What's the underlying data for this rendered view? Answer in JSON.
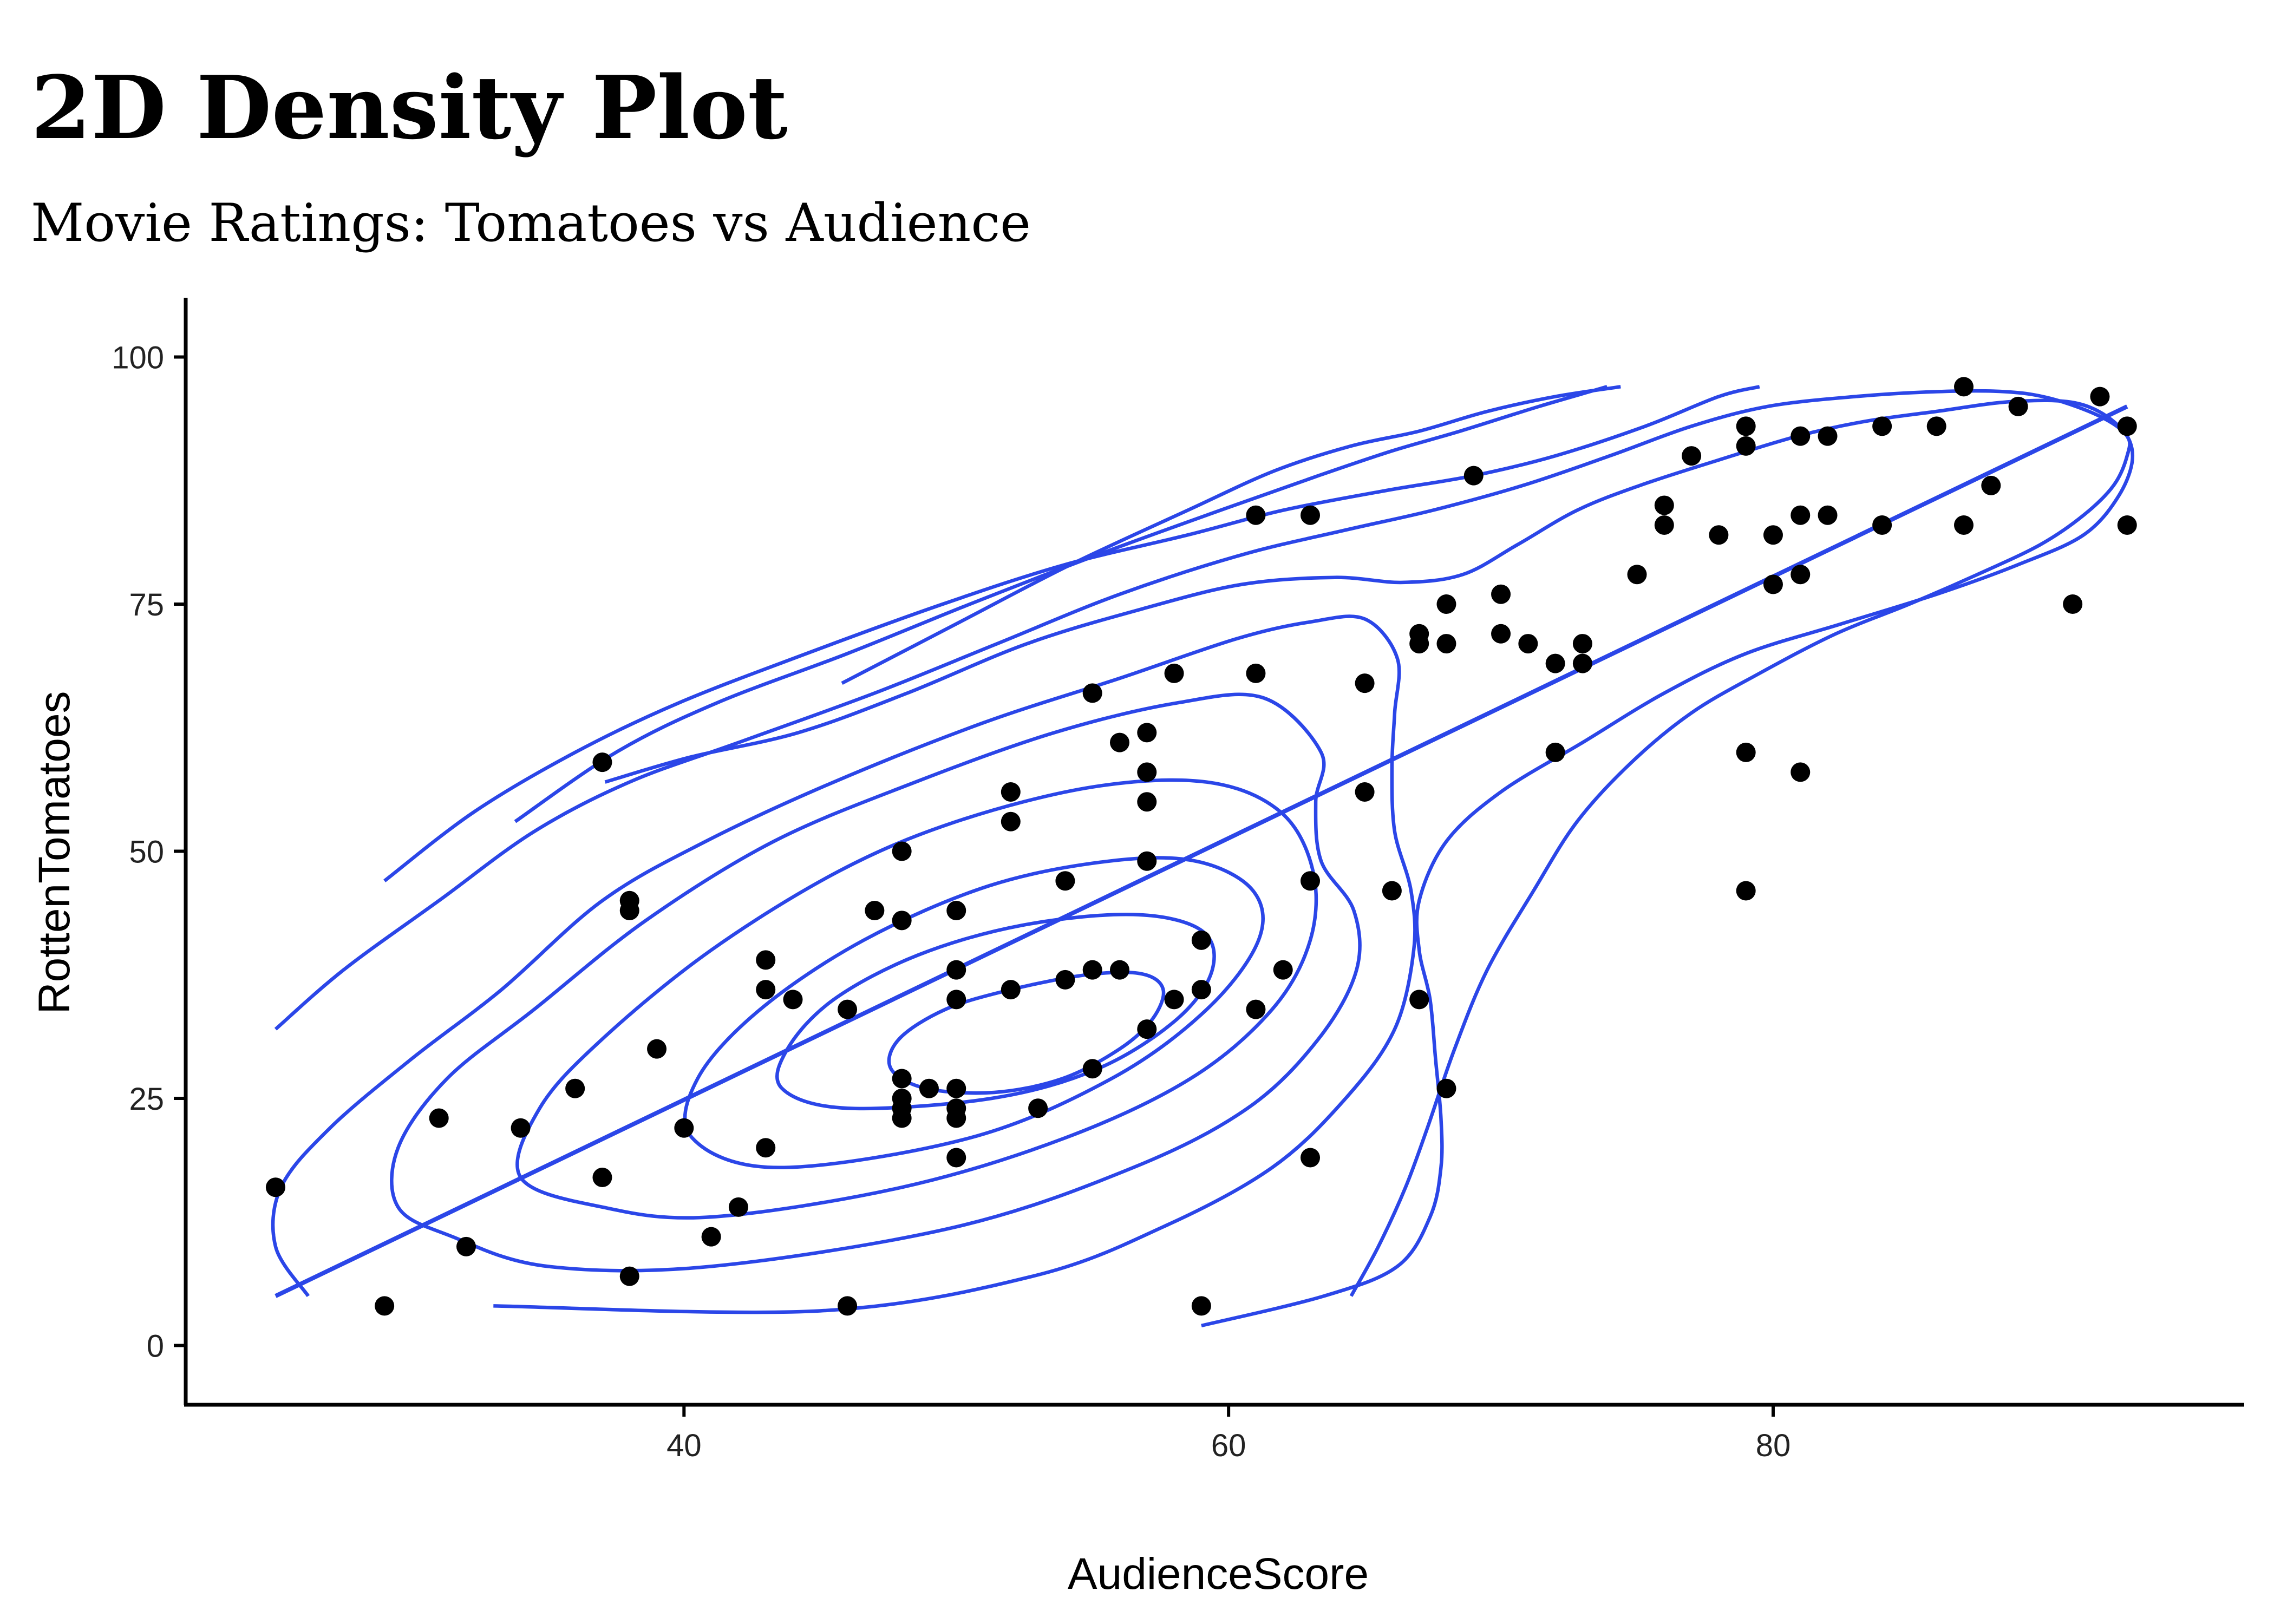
{
  "chart_data": {
    "type": "scatter",
    "title": "2D Density Plot",
    "subtitle": "Movie Ratings: Tomatoes vs Audience",
    "xlabel": "AudienceScore",
    "ylabel": "RottenTomatoes",
    "xlim": [
      21.7,
      97.3
    ],
    "ylim": [
      -6,
      106
    ],
    "xticks": [
      "40",
      "60",
      "80"
    ],
    "yticks": [
      "0",
      "25",
      "50",
      "75",
      "100"
    ],
    "grid": false,
    "legend": "none",
    "colors": {
      "points": "#000000",
      "contours": "#2B46E8",
      "regression": "#2B46E8"
    },
    "points": [
      {
        "x": 25,
        "y": 16
      },
      {
        "x": 29,
        "y": 4
      },
      {
        "x": 31,
        "y": 23
      },
      {
        "x": 32,
        "y": 10
      },
      {
        "x": 34,
        "y": 22
      },
      {
        "x": 36,
        "y": 26
      },
      {
        "x": 37,
        "y": 17
      },
      {
        "x": 37,
        "y": 59
      },
      {
        "x": 38,
        "y": 45
      },
      {
        "x": 38,
        "y": 44
      },
      {
        "x": 38,
        "y": 7
      },
      {
        "x": 39,
        "y": 30
      },
      {
        "x": 40,
        "y": 22
      },
      {
        "x": 41,
        "y": 11
      },
      {
        "x": 42,
        "y": 14
      },
      {
        "x": 43,
        "y": 39
      },
      {
        "x": 43,
        "y": 36
      },
      {
        "x": 43,
        "y": 20
      },
      {
        "x": 44,
        "y": 35
      },
      {
        "x": 46,
        "y": 34
      },
      {
        "x": 46,
        "y": 4
      },
      {
        "x": 47,
        "y": 44
      },
      {
        "x": 48,
        "y": 50
      },
      {
        "x": 48,
        "y": 43
      },
      {
        "x": 48,
        "y": 27
      },
      {
        "x": 48,
        "y": 25
      },
      {
        "x": 48,
        "y": 24
      },
      {
        "x": 48,
        "y": 23
      },
      {
        "x": 49,
        "y": 26
      },
      {
        "x": 50,
        "y": 44
      },
      {
        "x": 50,
        "y": 38
      },
      {
        "x": 50,
        "y": 35
      },
      {
        "x": 50,
        "y": 26
      },
      {
        "x": 50,
        "y": 24
      },
      {
        "x": 50,
        "y": 23
      },
      {
        "x": 50,
        "y": 19
      },
      {
        "x": 52,
        "y": 56
      },
      {
        "x": 52,
        "y": 53
      },
      {
        "x": 52,
        "y": 36
      },
      {
        "x": 53,
        "y": 24
      },
      {
        "x": 54,
        "y": 47
      },
      {
        "x": 54,
        "y": 37
      },
      {
        "x": 55,
        "y": 66
      },
      {
        "x": 55,
        "y": 38
      },
      {
        "x": 55,
        "y": 28
      },
      {
        "x": 56,
        "y": 61
      },
      {
        "x": 56,
        "y": 38
      },
      {
        "x": 57,
        "y": 62
      },
      {
        "x": 57,
        "y": 58
      },
      {
        "x": 57,
        "y": 55
      },
      {
        "x": 57,
        "y": 49
      },
      {
        "x": 57,
        "y": 32
      },
      {
        "x": 58,
        "y": 68
      },
      {
        "x": 58,
        "y": 35
      },
      {
        "x": 59,
        "y": 41
      },
      {
        "x": 59,
        "y": 36
      },
      {
        "x": 59,
        "y": 4
      },
      {
        "x": 61,
        "y": 84
      },
      {
        "x": 61,
        "y": 68
      },
      {
        "x": 61,
        "y": 34
      },
      {
        "x": 62,
        "y": 38
      },
      {
        "x": 63,
        "y": 84
      },
      {
        "x": 63,
        "y": 47
      },
      {
        "x": 63,
        "y": 19
      },
      {
        "x": 65,
        "y": 67
      },
      {
        "x": 65,
        "y": 56
      },
      {
        "x": 66,
        "y": 46
      },
      {
        "x": 67,
        "y": 72
      },
      {
        "x": 67,
        "y": 71
      },
      {
        "x": 67,
        "y": 35
      },
      {
        "x": 68,
        "y": 75
      },
      {
        "x": 68,
        "y": 71
      },
      {
        "x": 68,
        "y": 26
      },
      {
        "x": 69,
        "y": 88
      },
      {
        "x": 70,
        "y": 76
      },
      {
        "x": 70,
        "y": 72
      },
      {
        "x": 71,
        "y": 71
      },
      {
        "x": 72,
        "y": 69
      },
      {
        "x": 72,
        "y": 60
      },
      {
        "x": 73,
        "y": 71
      },
      {
        "x": 73,
        "y": 69
      },
      {
        "x": 75,
        "y": 78
      },
      {
        "x": 76,
        "y": 85
      },
      {
        "x": 76,
        "y": 83
      },
      {
        "x": 77,
        "y": 90
      },
      {
        "x": 78,
        "y": 82
      },
      {
        "x": 79,
        "y": 93
      },
      {
        "x": 79,
        "y": 91
      },
      {
        "x": 79,
        "y": 60
      },
      {
        "x": 79,
        "y": 46
      },
      {
        "x": 80,
        "y": 82
      },
      {
        "x": 80,
        "y": 77
      },
      {
        "x": 81,
        "y": 92
      },
      {
        "x": 81,
        "y": 84
      },
      {
        "x": 81,
        "y": 78
      },
      {
        "x": 81,
        "y": 58
      },
      {
        "x": 82,
        "y": 92
      },
      {
        "x": 82,
        "y": 84
      },
      {
        "x": 84,
        "y": 93
      },
      {
        "x": 84,
        "y": 83
      },
      {
        "x": 86,
        "y": 93
      },
      {
        "x": 87,
        "y": 97
      },
      {
        "x": 87,
        "y": 83
      },
      {
        "x": 88,
        "y": 87
      },
      {
        "x": 89,
        "y": 95
      },
      {
        "x": 91,
        "y": 75
      },
      {
        "x": 92,
        "y": 96
      },
      {
        "x": 93,
        "y": 93
      },
      {
        "x": 93,
        "y": 83
      }
    ],
    "regression": [
      {
        "x": 25,
        "y": 5
      },
      {
        "x": 93,
        "y": 95
      }
    ],
    "contours": [
      [
        [
          48.9,
          26
        ],
        [
          47.6,
          28
        ],
        [
          47.9,
          31
        ],
        [
          49.6,
          34
        ],
        [
          52.0,
          36
        ],
        [
          54.8,
          37.5
        ],
        [
          56.8,
          37.6
        ],
        [
          57.6,
          36
        ],
        [
          57.2,
          33
        ],
        [
          56.0,
          30
        ],
        [
          53.9,
          27
        ],
        [
          51.4,
          25.6
        ],
        [
          48.9,
          26
        ]
      ],
      [
        [
          46.0,
          24
        ],
        [
          43.6,
          26
        ],
        [
          43.8,
          30
        ],
        [
          45.5,
          35
        ],
        [
          48.6,
          39.5
        ],
        [
          52.4,
          42.5
        ],
        [
          56.5,
          43.6
        ],
        [
          59.0,
          42
        ],
        [
          59.4,
          38
        ],
        [
          58.1,
          33
        ],
        [
          55.2,
          28
        ],
        [
          51.3,
          25
        ],
        [
          46.0,
          24
        ]
      ],
      [
        [
          43.5,
          18
        ],
        [
          40.3,
          21
        ],
        [
          40.5,
          27
        ],
        [
          42.8,
          34
        ],
        [
          46.6,
          41
        ],
        [
          51.2,
          46.5
        ],
        [
          55.6,
          49
        ],
        [
          58.8,
          49
        ],
        [
          60.9,
          46
        ],
        [
          61.1,
          41
        ],
        [
          59.2,
          34
        ],
        [
          55.7,
          27
        ],
        [
          50.5,
          21
        ],
        [
          43.5,
          18
        ]
      ],
      [
        [
          37.0,
          14
        ],
        [
          34.0,
          17
        ],
        [
          34.7,
          24
        ],
        [
          37.0,
          31
        ],
        [
          41.0,
          40
        ],
        [
          45.7,
          48
        ],
        [
          50.0,
          53
        ],
        [
          55.0,
          56.5
        ],
        [
          59.2,
          57
        ],
        [
          61.9,
          54
        ],
        [
          63.1,
          48
        ],
        [
          63.0,
          41
        ],
        [
          61.6,
          34
        ],
        [
          58.6,
          27
        ],
        [
          54.0,
          21
        ],
        [
          48.0,
          16
        ],
        [
          41.0,
          13
        ],
        [
          37.0,
          14
        ]
      ],
      [
        [
          31.5,
          11
        ],
        [
          29.5,
          14
        ],
        [
          29.5,
          20
        ],
        [
          31.3,
          27
        ],
        [
          34.5,
          34
        ],
        [
          38.6,
          43
        ],
        [
          43.3,
          51
        ],
        [
          48.5,
          57
        ],
        [
          53.6,
          62
        ],
        [
          58.1,
          65
        ],
        [
          61.3,
          65.5
        ],
        [
          63.4,
          60
        ],
        [
          63.2,
          55
        ],
        [
          63.4,
          49
        ],
        [
          64.6,
          44
        ],
        [
          64.7,
          38
        ],
        [
          63.3,
          31
        ],
        [
          60.7,
          24
        ],
        [
          56.5,
          18
        ],
        [
          50.0,
          12
        ],
        [
          41.0,
          8
        ],
        [
          35.0,
          8
        ],
        [
          31.5,
          11
        ]
      ],
      [
        [
          26.2,
          5
        ],
        [
          25.0,
          10
        ],
        [
          25.2,
          16
        ],
        [
          27.0,
          22
        ],
        [
          30.0,
          29
        ],
        [
          33.3,
          36
        ],
        [
          37.0,
          45
        ],
        [
          40.8,
          51
        ],
        [
          45.5,
          57
        ],
        [
          51.0,
          63
        ],
        [
          56.0,
          67.5
        ],
        [
          60.3,
          71.5
        ],
        [
          63.0,
          73.2
        ],
        [
          65.0,
          73.5
        ],
        [
          66.2,
          69.5
        ],
        [
          66.1,
          64
        ],
        [
          66.0,
          58.5
        ],
        [
          66.1,
          52
        ],
        [
          66.7,
          46
        ],
        [
          66.8,
          40
        ],
        [
          66.1,
          32
        ],
        [
          64.3,
          25
        ],
        [
          61.6,
          18
        ],
        [
          57.6,
          12
        ],
        [
          52.8,
          7
        ],
        [
          45.0,
          3.5
        ],
        [
          33.0,
          4
        ]
      ],
      [
        [
          37.1,
          57
        ],
        [
          40.2,
          59.5
        ],
        [
          44.2,
          62
        ],
        [
          48.2,
          66
        ],
        [
          52.6,
          71
        ],
        [
          56.8,
          74.5
        ],
        [
          60.5,
          77
        ],
        [
          63.9,
          77.7
        ],
        [
          66.4,
          77.2
        ],
        [
          68.6,
          78
        ],
        [
          70.6,
          81
        ],
        [
          72.8,
          84.5
        ],
        [
          75.1,
          87
        ],
        [
          77.9,
          89.5
        ],
        [
          80.9,
          92
        ],
        [
          83.4,
          93.5
        ],
        [
          86.0,
          94.5
        ],
        [
          88.8,
          95.5
        ],
        [
          91.2,
          95.3
        ],
        [
          92.7,
          93
        ],
        [
          93.2,
          90
        ],
        [
          92.7,
          86
        ],
        [
          91.4,
          82
        ],
        [
          89.0,
          79
        ],
        [
          86.0,
          76
        ],
        [
          82.5,
          73
        ],
        [
          79.0,
          70
        ],
        [
          76.0,
          66
        ],
        [
          73.0,
          61
        ],
        [
          70.0,
          56
        ],
        [
          68.0,
          51
        ],
        [
          67.0,
          45
        ],
        [
          67.0,
          40
        ],
        [
          67.4,
          35
        ],
        [
          67.6,
          29
        ],
        [
          67.8,
          23
        ],
        [
          67.8,
          18
        ],
        [
          67.4,
          13
        ],
        [
          66.2,
          8
        ],
        [
          63.5,
          5
        ],
        [
          59.0,
          2
        ]
      ],
      [
        [
          25,
          32
        ],
        [
          27.5,
          38
        ],
        [
          31.0,
          45
        ],
        [
          34.5,
          52
        ],
        [
          38.0,
          57
        ],
        [
          42.0,
          61
        ],
        [
          47.0,
          66
        ],
        [
          51.5,
          71
        ],
        [
          56.0,
          76
        ],
        [
          60.5,
          80
        ],
        [
          64.3,
          82.5
        ],
        [
          67.5,
          84.5
        ],
        [
          70.8,
          87
        ],
        [
          74.0,
          90
        ],
        [
          77.0,
          93
        ],
        [
          79.8,
          95
        ],
        [
          83.0,
          96
        ],
        [
          86.0,
          96.5
        ],
        [
          88.5,
          96.5
        ],
        [
          90.2,
          95.8
        ],
        [
          92.0,
          94
        ],
        [
          93.0,
          92
        ],
        [
          93.0,
          90
        ],
        [
          92.5,
          87
        ],
        [
          91.4,
          84
        ],
        [
          89.8,
          81
        ],
        [
          87.5,
          78
        ],
        [
          85.0,
          75
        ],
        [
          82.3,
          72
        ],
        [
          79.5,
          68
        ],
        [
          77.0,
          64
        ],
        [
          74.8,
          59
        ],
        [
          72.8,
          53
        ],
        [
          71.2,
          46
        ],
        [
          69.5,
          38
        ],
        [
          68.3,
          30
        ],
        [
          67.3,
          22
        ],
        [
          66.5,
          16
        ],
        [
          65.5,
          10
        ],
        [
          64.5,
          5
        ]
      ],
      [
        [
          29.0,
          47
        ],
        [
          32.3,
          54
        ],
        [
          36.0,
          60
        ],
        [
          39.8,
          65
        ],
        [
          44.5,
          70
        ],
        [
          49.5,
          75
        ],
        [
          54.0,
          79
        ],
        [
          58.5,
          82
        ],
        [
          62.0,
          84.5
        ],
        [
          65.8,
          86.5
        ],
        [
          69.0,
          88
        ],
        [
          72.0,
          90
        ],
        [
          75.3,
          93
        ],
        [
          78.0,
          96
        ],
        [
          79.5,
          97
        ]
      ],
      [
        [
          33.8,
          53
        ],
        [
          37.5,
          60
        ],
        [
          41.2,
          65
        ],
        [
          46.0,
          70
        ],
        [
          50.5,
          75
        ],
        [
          55.2,
          80
        ],
        [
          59.7,
          84.5
        ],
        [
          63.3,
          88
        ],
        [
          66.0,
          90.5
        ],
        [
          68.5,
          92.5
        ],
        [
          71.4,
          95
        ],
        [
          73.9,
          97
        ]
      ],
      [
        [
          45.8,
          67
        ],
        [
          50.0,
          73
        ],
        [
          54.2,
          79
        ],
        [
          58.5,
          84.5
        ],
        [
          61.7,
          88.5
        ],
        [
          64.5,
          91
        ],
        [
          67.0,
          92.5
        ],
        [
          69.5,
          94.5
        ],
        [
          72.0,
          96
        ],
        [
          74.4,
          97
        ]
      ],
      [
        [
          63.9,
          97
        ]
      ],
      [
        [
          79.0,
          97.5
        ]
      ]
    ]
  }
}
